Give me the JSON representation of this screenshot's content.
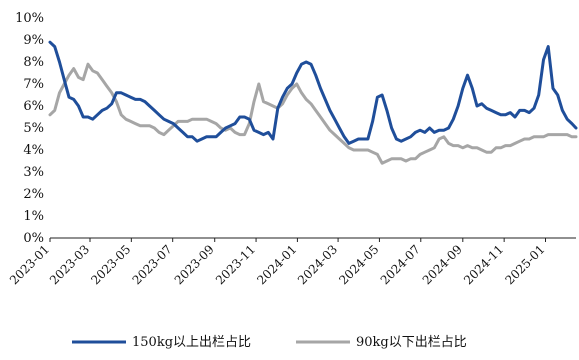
{
  "chart_data": {
    "type": "line",
    "title": "",
    "xlabel": "",
    "ylabel": "",
    "ylim": [
      0,
      10
    ],
    "y_tick_labels": [
      "0%",
      "1%",
      "2%",
      "3%",
      "4%",
      "5%",
      "6%",
      "7%",
      "8%",
      "9%",
      "10%"
    ],
    "x_tick_labels": [
      "2023-01",
      "2023-03",
      "2023-05",
      "2023-07",
      "2023-09",
      "2023-11",
      "2024-01",
      "2024-03",
      "2024-05",
      "2024-07",
      "2024-09",
      "2024-11",
      "2025-01"
    ],
    "x_range": [
      "2023-01-01",
      "2025-02-15"
    ],
    "grid": false,
    "legend_position": "bottom",
    "series": [
      {
        "name": "150kg以上出栏占比",
        "color": "#1f4e9a",
        "x": [
          "2023-01-01",
          "2023-01-08",
          "2023-01-15",
          "2023-01-22",
          "2023-01-29",
          "2023-02-05",
          "2023-02-12",
          "2023-02-19",
          "2023-02-26",
          "2023-03-05",
          "2023-03-12",
          "2023-03-19",
          "2023-03-26",
          "2023-04-02",
          "2023-04-09",
          "2023-04-16",
          "2023-04-23",
          "2023-04-30",
          "2023-05-07",
          "2023-05-14",
          "2023-05-21",
          "2023-05-28",
          "2023-06-04",
          "2023-06-11",
          "2023-06-18",
          "2023-06-25",
          "2023-07-02",
          "2023-07-09",
          "2023-07-16",
          "2023-07-23",
          "2023-07-30",
          "2023-08-06",
          "2023-08-13",
          "2023-08-20",
          "2023-08-27",
          "2023-09-03",
          "2023-09-10",
          "2023-09-17",
          "2023-09-24",
          "2023-10-01",
          "2023-10-08",
          "2023-10-15",
          "2023-10-22",
          "2023-10-29",
          "2023-11-05",
          "2023-11-12",
          "2023-11-19",
          "2023-11-26",
          "2023-12-03",
          "2023-12-10",
          "2023-12-17",
          "2023-12-24",
          "2023-12-31",
          "2024-01-07",
          "2024-01-14",
          "2024-01-21",
          "2024-01-28",
          "2024-02-04",
          "2024-02-11",
          "2024-02-18",
          "2024-02-25",
          "2024-03-03",
          "2024-03-10",
          "2024-03-17",
          "2024-03-24",
          "2024-03-31",
          "2024-04-07",
          "2024-04-14",
          "2024-04-21",
          "2024-04-28",
          "2024-05-05",
          "2024-05-12",
          "2024-05-19",
          "2024-05-26",
          "2024-06-02",
          "2024-06-09",
          "2024-06-16",
          "2024-06-23",
          "2024-06-30",
          "2024-07-07",
          "2024-07-14",
          "2024-07-21",
          "2024-07-28",
          "2024-08-04",
          "2024-08-11",
          "2024-08-18",
          "2024-08-25",
          "2024-09-01",
          "2024-09-08",
          "2024-09-15",
          "2024-09-22",
          "2024-09-29",
          "2024-10-06",
          "2024-10-13",
          "2024-10-20",
          "2024-10-27",
          "2024-11-03",
          "2024-11-10",
          "2024-11-17",
          "2024-11-24",
          "2024-12-01",
          "2024-12-08",
          "2024-12-15",
          "2024-12-22",
          "2024-12-29",
          "2025-01-05",
          "2025-01-12",
          "2025-01-19",
          "2025-01-26",
          "2025-02-02",
          "2025-02-09",
          "2025-02-15"
        ],
        "values": [
          8.9,
          8.7,
          8.0,
          7.2,
          6.4,
          6.3,
          6.0,
          5.5,
          5.5,
          5.4,
          5.6,
          5.8,
          5.9,
          6.1,
          6.6,
          6.6,
          6.5,
          6.4,
          6.3,
          6.3,
          6.2,
          6.0,
          5.8,
          5.6,
          5.4,
          5.3,
          5.2,
          5.0,
          4.8,
          4.6,
          4.6,
          4.4,
          4.5,
          4.6,
          4.6,
          4.6,
          4.8,
          5.0,
          5.1,
          5.2,
          5.5,
          5.5,
          5.4,
          4.9,
          4.8,
          4.7,
          4.8,
          4.5,
          5.9,
          6.4,
          6.8,
          7.0,
          7.5,
          7.9,
          8.0,
          7.9,
          7.4,
          6.8,
          6.3,
          5.8,
          5.4,
          5.0,
          4.6,
          4.3,
          4.4,
          4.5,
          4.5,
          4.5,
          5.3,
          6.4,
          6.5,
          5.8,
          5.0,
          4.5,
          4.4,
          4.5,
          4.6,
          4.8,
          4.9,
          4.8,
          5.0,
          4.8,
          4.9,
          4.9,
          5.0,
          5.4,
          6.0,
          6.8,
          7.4,
          6.8,
          6.0,
          6.1,
          5.9,
          5.8,
          5.7,
          5.6,
          5.6,
          5.7,
          5.5,
          5.8,
          5.8,
          5.7,
          5.9,
          6.5,
          8.1,
          8.7,
          6.8,
          6.5,
          5.8,
          5.4,
          5.2,
          5.0
        ]
      },
      {
        "name": "90kg以下出栏占比",
        "color": "#a6a6a6",
        "x": [
          "2023-01-01",
          "2023-01-08",
          "2023-01-15",
          "2023-01-22",
          "2023-01-29",
          "2023-02-05",
          "2023-02-12",
          "2023-02-19",
          "2023-02-26",
          "2023-03-05",
          "2023-03-12",
          "2023-03-19",
          "2023-03-26",
          "2023-04-02",
          "2023-04-09",
          "2023-04-16",
          "2023-04-23",
          "2023-04-30",
          "2023-05-07",
          "2023-05-14",
          "2023-05-21",
          "2023-05-28",
          "2023-06-04",
          "2023-06-11",
          "2023-06-18",
          "2023-06-25",
          "2023-07-02",
          "2023-07-09",
          "2023-07-16",
          "2023-07-23",
          "2023-07-30",
          "2023-08-06",
          "2023-08-13",
          "2023-08-20",
          "2023-08-27",
          "2023-09-03",
          "2023-09-10",
          "2023-09-17",
          "2023-09-24",
          "2023-10-01",
          "2023-10-08",
          "2023-10-15",
          "2023-10-22",
          "2023-10-29",
          "2023-11-05",
          "2023-11-12",
          "2023-11-19",
          "2023-11-26",
          "2023-12-03",
          "2023-12-10",
          "2023-12-17",
          "2023-12-24",
          "2023-12-31",
          "2024-01-07",
          "2024-01-14",
          "2024-01-21",
          "2024-01-28",
          "2024-02-04",
          "2024-02-11",
          "2024-02-18",
          "2024-02-25",
          "2024-03-03",
          "2024-03-10",
          "2024-03-17",
          "2024-03-24",
          "2024-03-31",
          "2024-04-07",
          "2024-04-14",
          "2024-04-21",
          "2024-04-28",
          "2024-05-05",
          "2024-05-12",
          "2024-05-19",
          "2024-05-26",
          "2024-06-02",
          "2024-06-09",
          "2024-06-16",
          "2024-06-23",
          "2024-06-30",
          "2024-07-07",
          "2024-07-14",
          "2024-07-21",
          "2024-07-28",
          "2024-08-04",
          "2024-08-11",
          "2024-08-18",
          "2024-08-25",
          "2024-09-01",
          "2024-09-08",
          "2024-09-15",
          "2024-09-22",
          "2024-09-29",
          "2024-10-06",
          "2024-10-13",
          "2024-10-20",
          "2024-10-27",
          "2024-11-03",
          "2024-11-10",
          "2024-11-17",
          "2024-11-24",
          "2024-12-01",
          "2024-12-08",
          "2024-12-15",
          "2024-12-22",
          "2024-12-29",
          "2025-01-05",
          "2025-01-12",
          "2025-01-19",
          "2025-01-26",
          "2025-02-02",
          "2025-02-09",
          "2025-02-15"
        ],
        "values": [
          5.6,
          5.8,
          6.6,
          7.0,
          7.4,
          7.7,
          7.3,
          7.2,
          7.9,
          7.6,
          7.5,
          7.2,
          6.9,
          6.6,
          6.2,
          5.6,
          5.4,
          5.3,
          5.2,
          5.1,
          5.1,
          5.1,
          5.0,
          4.8,
          4.7,
          4.9,
          5.1,
          5.3,
          5.3,
          5.3,
          5.4,
          5.4,
          5.4,
          5.4,
          5.3,
          5.2,
          5.0,
          4.9,
          5.0,
          4.8,
          4.7,
          4.7,
          5.2,
          6.2,
          7.0,
          6.2,
          6.1,
          6.0,
          5.9,
          6.1,
          6.5,
          6.8,
          7.0,
          6.6,
          6.3,
          6.1,
          5.8,
          5.5,
          5.2,
          4.9,
          4.7,
          4.5,
          4.3,
          4.1,
          4.0,
          4.0,
          4.0,
          4.0,
          3.9,
          3.8,
          3.4,
          3.5,
          3.6,
          3.6,
          3.6,
          3.5,
          3.6,
          3.6,
          3.8,
          3.9,
          4.0,
          4.1,
          4.5,
          4.6,
          4.3,
          4.2,
          4.2,
          4.1,
          4.2,
          4.1,
          4.1,
          4.0,
          3.9,
          3.9,
          4.1,
          4.1,
          4.2,
          4.2,
          4.3,
          4.4,
          4.5,
          4.5,
          4.6,
          4.6,
          4.6,
          4.7,
          4.7,
          4.7,
          4.7,
          4.7,
          4.6,
          4.6
        ]
      }
    ]
  }
}
